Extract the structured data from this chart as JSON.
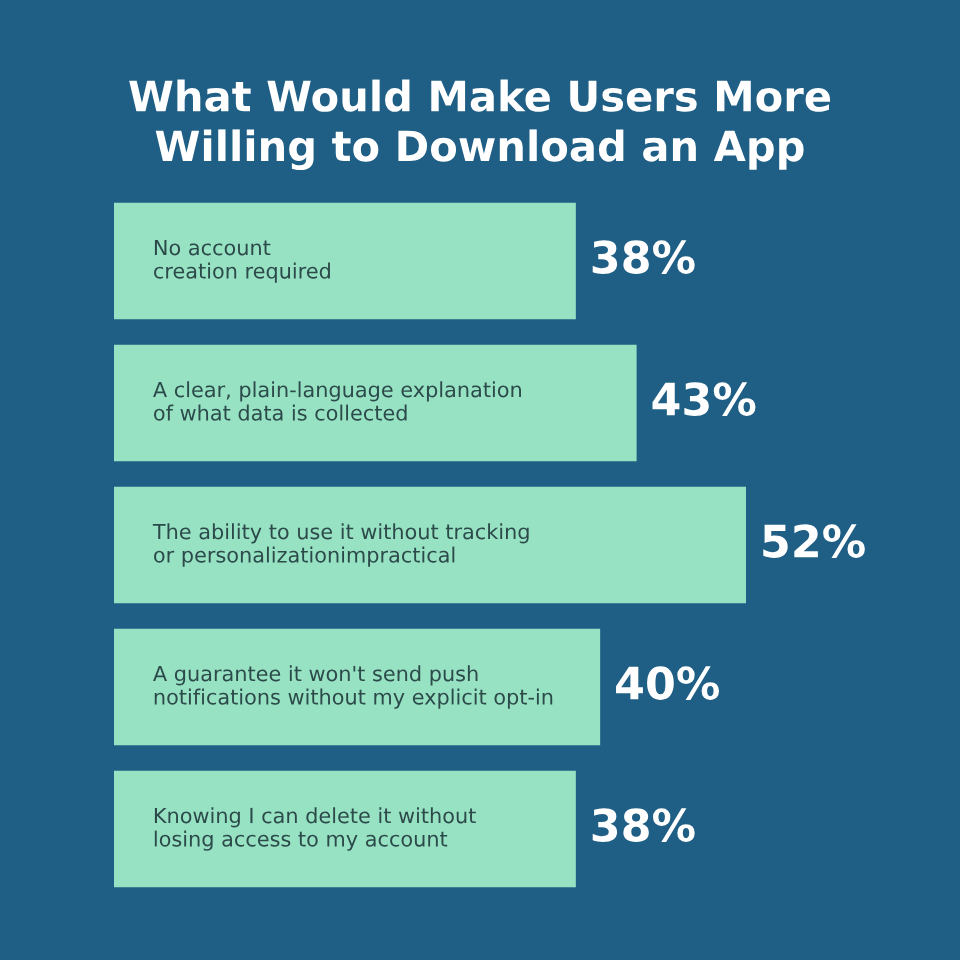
{
  "chart_data": {
    "type": "bar",
    "orientation": "horizontal",
    "title": "What Would Make Users More\nWilling to Download an App",
    "categories": [
      "No account\ncreation required",
      "A clear, plain-language explanation\nof what data is collected",
      "The ability to use it without tracking\nor personalizationimpractical",
      "A guarantee it won't send push\nnotifications without my explicit opt-in",
      "Knowing I can delete it without\nlosing access to my account"
    ],
    "values": [
      38,
      43,
      52,
      40,
      38
    ],
    "value_labels": [
      "38%",
      "43%",
      "52%",
      "40%",
      "38%"
    ],
    "color": "#96e2c3",
    "tick_labels": false
  }
}
